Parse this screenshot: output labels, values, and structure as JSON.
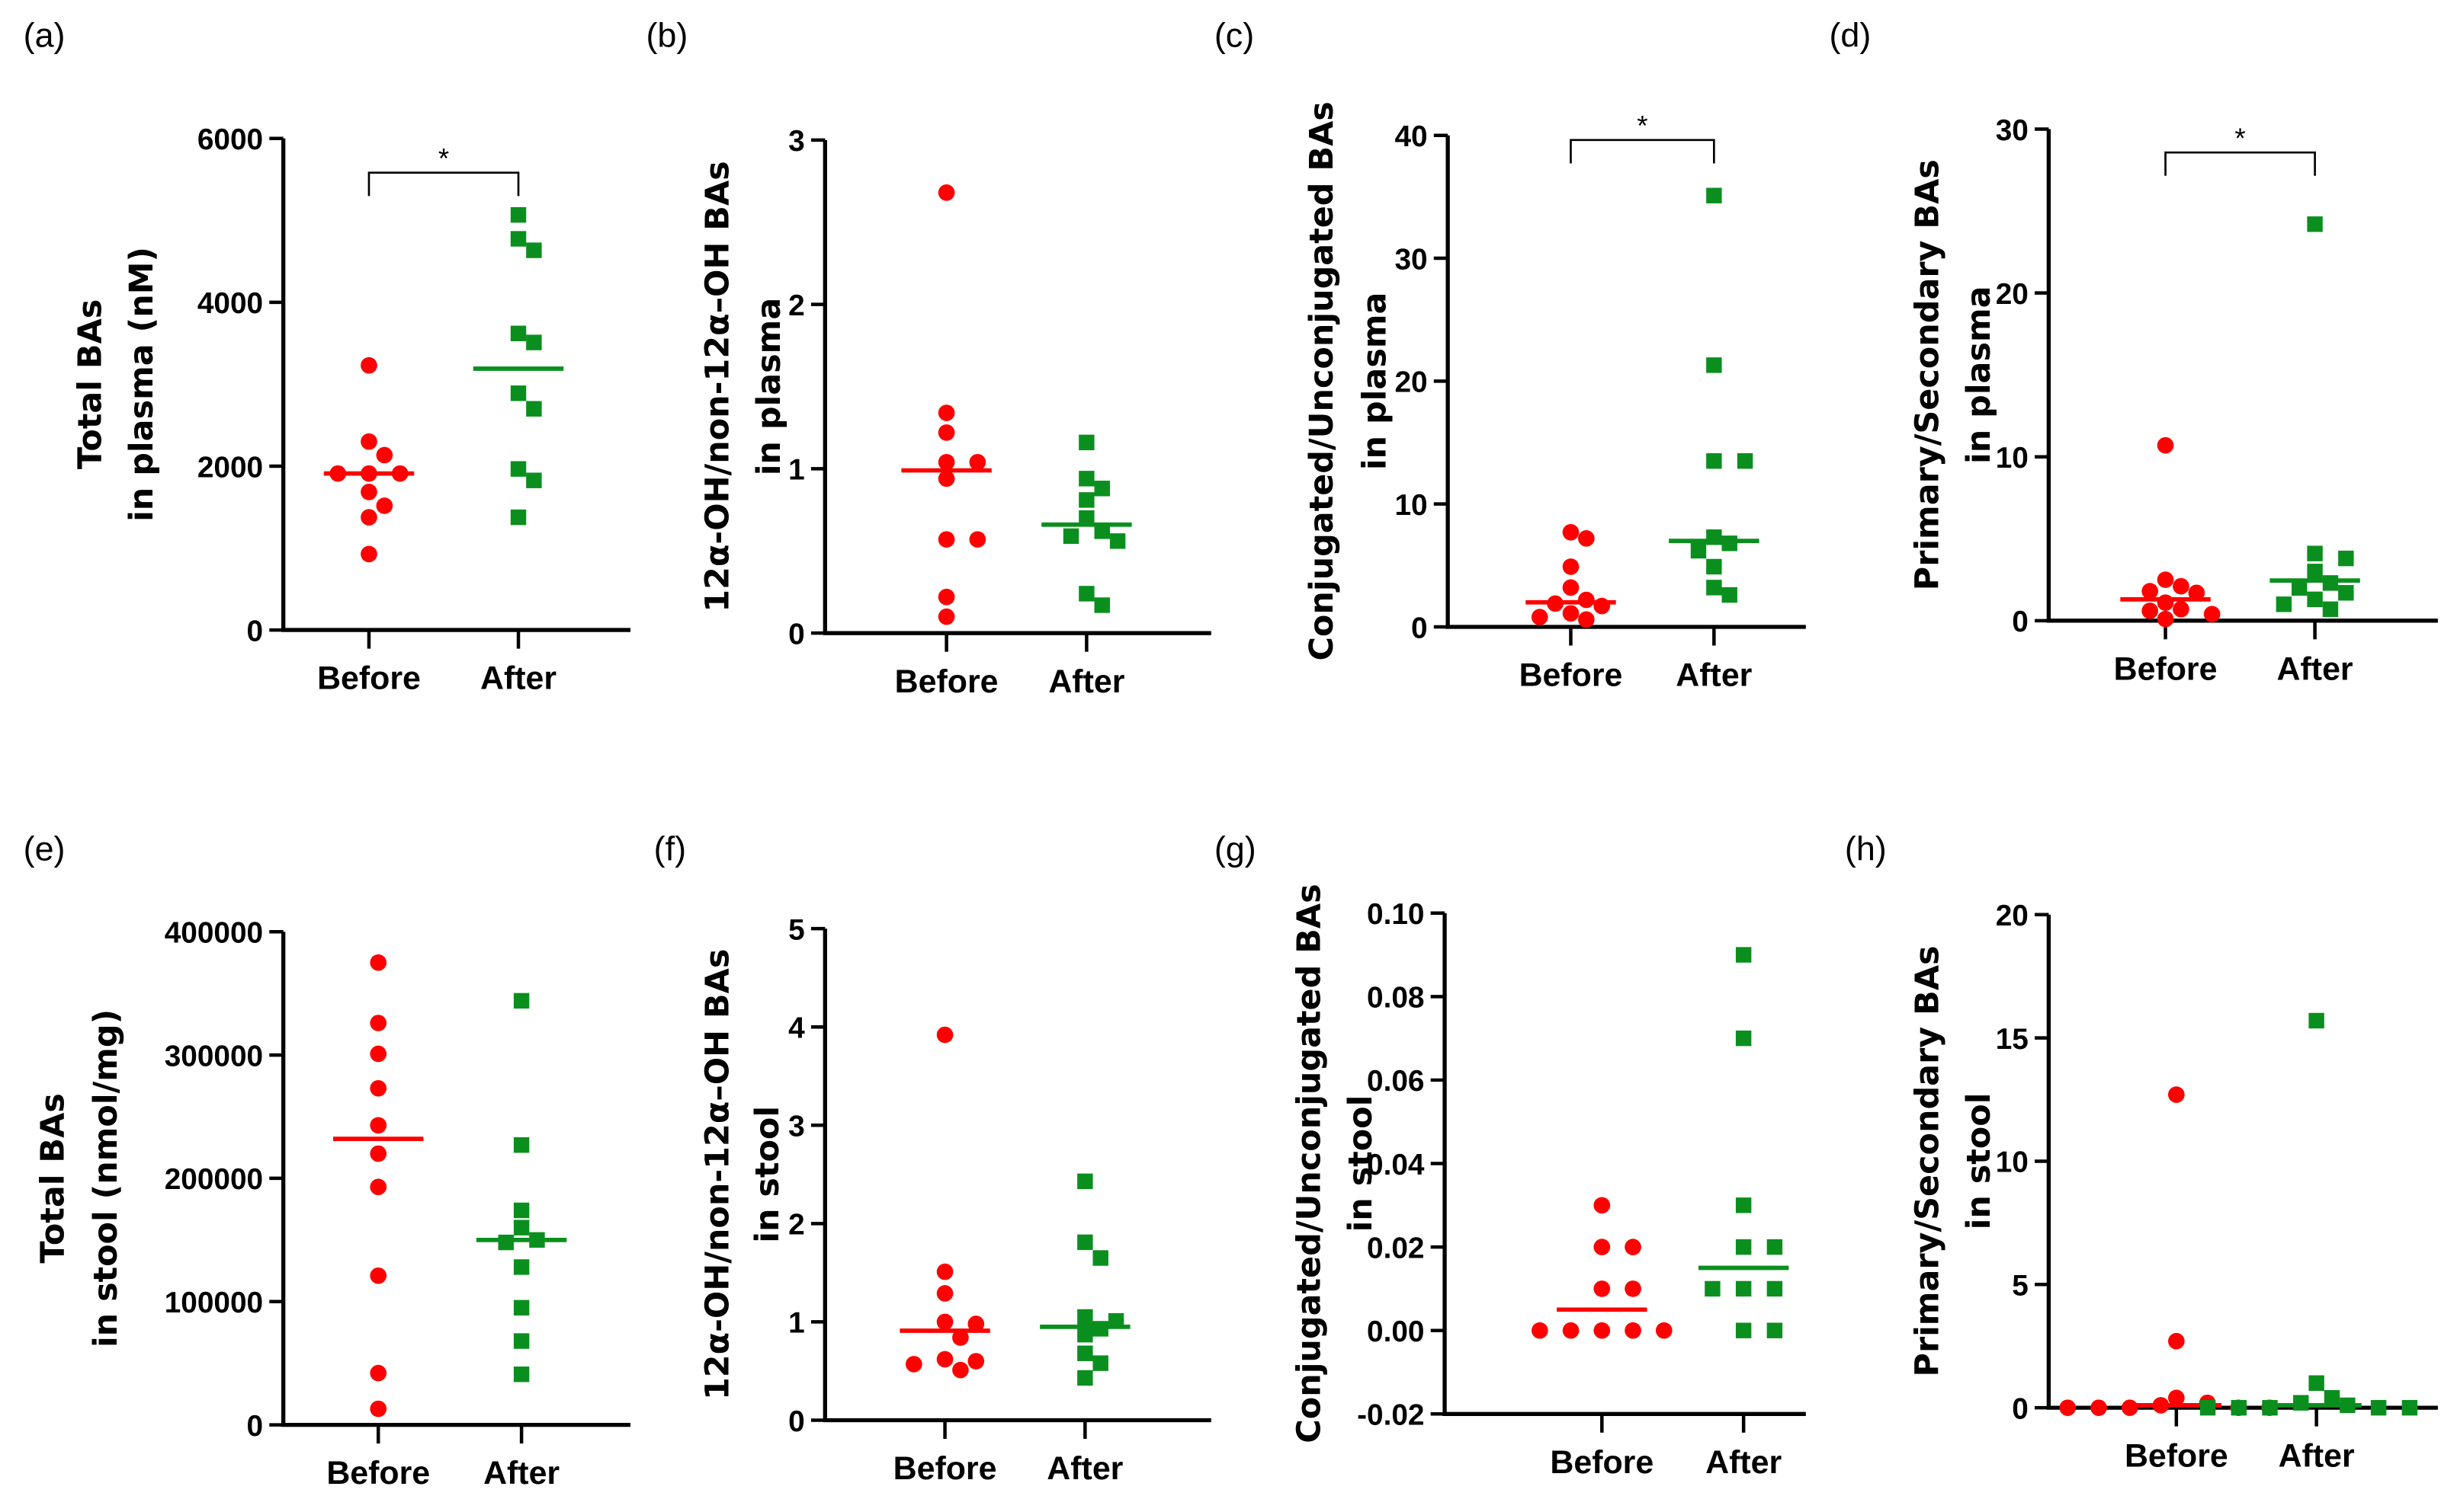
{
  "colors": {
    "before": "#ff0000",
    "after": "#0a8f1e",
    "axis": "#000000"
  },
  "chart_data": [
    {
      "id": "a",
      "type": "scatter",
      "panel_label": "(a)",
      "ylabel": [
        "Total BAs",
        "in plasma (nM)"
      ],
      "ylim": [
        0,
        6000
      ],
      "yticks": [
        0,
        2000,
        4000,
        6000
      ],
      "ytick_labels": [
        "0",
        "2000",
        "4000",
        "6000"
      ],
      "categories": [
        "Before",
        "After"
      ],
      "significance": "*",
      "series": [
        {
          "name": "Before",
          "marker": "circle",
          "values": [
            3230,
            2300,
            2135,
            1910,
            1910,
            1910,
            1685,
            1517,
            1376,
            927
          ],
          "mean": 1910
        },
        {
          "name": "After",
          "marker": "square",
          "values": [
            5067,
            4775,
            4635,
            3620,
            3510,
            2890,
            2700,
            1966,
            1826,
            1376
          ],
          "mean": 3190
        }
      ]
    },
    {
      "id": "b",
      "type": "scatter",
      "panel_label": "(b)",
      "ylabel": [
        "12α-OH/non-12α–OH BAs",
        "in plasma"
      ],
      "ylim": [
        0,
        3
      ],
      "yticks": [
        0,
        1,
        2,
        3
      ],
      "ytick_labels": [
        "0",
        "1",
        "2",
        "3"
      ],
      "categories": [
        "Before",
        "After"
      ],
      "significance": "",
      "series": [
        {
          "name": "Before",
          "marker": "circle",
          "values": [
            2.68,
            1.34,
            1.22,
            1.04,
            1.04,
            0.94,
            0.57,
            0.57,
            0.22,
            0.1
          ],
          "mean": 0.99
        },
        {
          "name": "After",
          "marker": "square",
          "values": [
            1.16,
            0.94,
            0.88,
            0.81,
            0.7,
            0.62,
            0.59,
            0.56,
            0.24,
            0.17
          ],
          "mean": 0.66
        }
      ]
    },
    {
      "id": "c",
      "type": "scatter",
      "panel_label": "(c)",
      "ylabel": [
        "Conjugated/Unconjugated BAs",
        "in plasma"
      ],
      "ylim": [
        0,
        40
      ],
      "yticks": [
        0,
        10,
        20,
        30,
        40
      ],
      "ytick_labels": [
        "0",
        "10",
        "20",
        "30",
        "40"
      ],
      "categories": [
        "Before",
        "After"
      ],
      "significance": "*",
      "series": [
        {
          "name": "Before",
          "marker": "circle",
          "values": [
            7.7,
            7.2,
            4.9,
            3.2,
            2.2,
            1.9,
            1.7,
            1.1,
            0.8,
            0.6
          ],
          "mean": 2.0
        },
        {
          "name": "After",
          "marker": "square",
          "values": [
            35.1,
            21.3,
            13.5,
            13.5,
            7.3,
            6.8,
            6.2,
            4.9,
            3.2,
            2.6
          ],
          "mean": 7.0
        }
      ]
    },
    {
      "id": "d",
      "type": "scatter",
      "panel_label": "(d)",
      "ylabel": [
        "Primary/Secondary BAs",
        "in plasma"
      ],
      "ylim": [
        0,
        30
      ],
      "yticks": [
        0,
        10,
        20,
        30
      ],
      "ytick_labels": [
        "0",
        "10",
        "20",
        "30"
      ],
      "categories": [
        "Before",
        "After"
      ],
      "significance": "*",
      "series": [
        {
          "name": "Before",
          "marker": "circle",
          "values": [
            10.7,
            2.5,
            2.1,
            1.8,
            1.7,
            1.1,
            0.7,
            0.6,
            0.4,
            0.1
          ],
          "mean": 1.3
        },
        {
          "name": "After",
          "marker": "square",
          "values": [
            24.2,
            4.1,
            3.8,
            3.0,
            2.3,
            2.0,
            1.7,
            1.3,
            1.0,
            0.7
          ],
          "mean": 2.45
        }
      ]
    },
    {
      "id": "e",
      "type": "scatter",
      "panel_label": "(e)",
      "ylabel": [
        "Total BAs",
        "in stool (nmol/mg)"
      ],
      "ylim": [
        0,
        400000
      ],
      "yticks": [
        0,
        100000,
        200000,
        300000,
        400000
      ],
      "ytick_labels": [
        "0",
        "100000",
        "200000",
        "300000",
        "400000"
      ],
      "categories": [
        "Before",
        "After"
      ],
      "significance": "",
      "series": [
        {
          "name": "Before",
          "marker": "circle",
          "values": [
            375000,
            326000,
            301000,
            273000,
            243000,
            220000,
            193000,
            121000,
            42000,
            13000
          ],
          "mean": 232000
        },
        {
          "name": "After",
          "marker": "square",
          "values": [
            344000,
            227000,
            174000,
            160000,
            150000,
            148000,
            128000,
            95000,
            68000,
            41000
          ],
          "mean": 150000
        }
      ]
    },
    {
      "id": "f",
      "type": "scatter",
      "panel_label": "(f)",
      "ylabel": [
        "12α-OH/non-12α–OH BAs",
        "in stool"
      ],
      "ylim": [
        0,
        5
      ],
      "yticks": [
        0,
        1,
        2,
        3,
        4,
        5
      ],
      "ytick_labels": [
        "0",
        "1",
        "2",
        "3",
        "4",
        "5"
      ],
      "categories": [
        "Before",
        "After"
      ],
      "significance": "",
      "series": [
        {
          "name": "Before",
          "marker": "circle",
          "values": [
            3.92,
            1.51,
            1.29,
            1.0,
            0.98,
            0.84,
            0.62,
            0.6,
            0.57,
            0.51
          ],
          "mean": 0.91
        },
        {
          "name": "After",
          "marker": "square",
          "values": [
            2.43,
            1.81,
            1.65,
            1.05,
            1.01,
            0.93,
            0.87,
            0.68,
            0.58,
            0.43
          ],
          "mean": 0.95
        }
      ]
    },
    {
      "id": "g",
      "type": "scatter",
      "panel_label": "(g)",
      "ylabel": [
        "Conjugated/Unconjugated BAs",
        "in stool"
      ],
      "ylim": [
        -0.02,
        0.1
      ],
      "yticks": [
        -0.02,
        0,
        0.02,
        0.04,
        0.06,
        0.08,
        0.1
      ],
      "ytick_labels": [
        "-0.02",
        "0.00",
        "0.02",
        "0.04",
        "0.06",
        "0.08",
        "0.10"
      ],
      "categories": [
        "Before",
        "After"
      ],
      "significance": "",
      "series": [
        {
          "name": "Before",
          "marker": "circle",
          "values": [
            0.03,
            0.02,
            0.02,
            0.01,
            0.01,
            0,
            0,
            0,
            0,
            0
          ],
          "mean": 0.005
        },
        {
          "name": "After",
          "marker": "square",
          "values": [
            0.09,
            0.07,
            0.03,
            0.02,
            0.02,
            0.01,
            0.01,
            0.01,
            0,
            0
          ],
          "mean": 0.015
        }
      ]
    },
    {
      "id": "h",
      "type": "scatter",
      "panel_label": "(h)",
      "ylabel": [
        "Primary/Secondary BAs",
        "in stool"
      ],
      "ylim": [
        0,
        20
      ],
      "yticks": [
        0,
        5,
        10,
        15,
        20
      ],
      "ytick_labels": [
        "0",
        "5",
        "10",
        "15",
        "20"
      ],
      "categories": [
        "Before",
        "After"
      ],
      "significance": "",
      "series": [
        {
          "name": "Before",
          "marker": "circle",
          "values": [
            12.7,
            2.7,
            0.4,
            0.2,
            0.1,
            0,
            0,
            0,
            0,
            0
          ],
          "mean": 0.1
        },
        {
          "name": "After",
          "marker": "square",
          "values": [
            15.7,
            1.0,
            0.4,
            0.2,
            0.1,
            0,
            0,
            0,
            0,
            0
          ],
          "mean": 0.1
        }
      ]
    }
  ]
}
